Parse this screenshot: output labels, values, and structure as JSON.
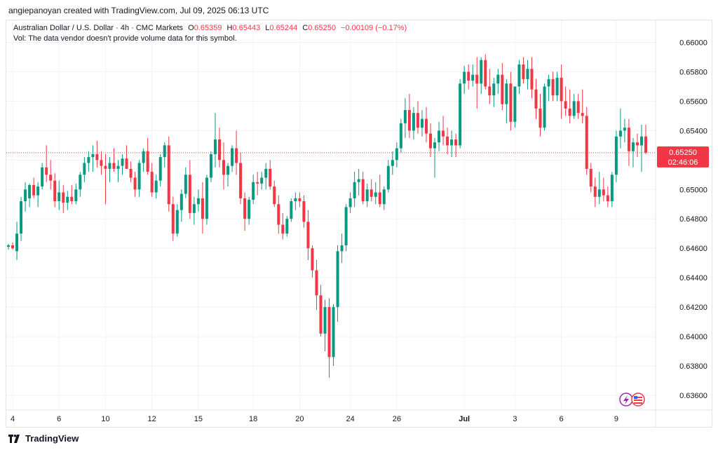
{
  "header": {
    "created_by": "angiepanoyan created with TradingView.com, Jul 09, 2025 06:13 UTC"
  },
  "legend": {
    "symbol": "Australian Dollar / U.S. Dollar · 4h · CMC Markets",
    "o_label": "O",
    "o": "0.65359",
    "h_label": "H",
    "h": "0.65443",
    "l_label": "L",
    "l": "0.65244",
    "c_label": "C",
    "c": "0.65250",
    "change": "−0.00109 (−0.17%)",
    "vol_note": "Vol: The data vendor doesn't provide volume data for this symbol."
  },
  "price_label": {
    "price": "0.65250",
    "countdown": "02:46:06"
  },
  "footer": {
    "brand": "TradingView"
  },
  "colors": {
    "up": "#089981",
    "down": "#f23645",
    "grid": "#f0f3fa",
    "text": "#131722",
    "countdown_bg": "#f23645"
  },
  "icons": [
    "lightning-icon",
    "us-flag-icon"
  ],
  "chart_data": {
    "type": "candlestick",
    "ylim": [
      0.635,
      0.6615
    ],
    "y_ticks": [
      "0.66000",
      "0.65800",
      "0.65600",
      "0.65400",
      "0.65200",
      "0.65000",
      "0.64800",
      "0.64600",
      "0.64400",
      "0.64200",
      "0.64000",
      "0.63800",
      "0.63600"
    ],
    "x_ticks": [
      {
        "label": "4",
        "index": 1
      },
      {
        "label": "6",
        "index": 12
      },
      {
        "label": "10",
        "index": 23
      },
      {
        "label": "12",
        "index": 34
      },
      {
        "label": "15",
        "index": 45
      },
      {
        "label": "18",
        "index": 58
      },
      {
        "label": "20",
        "index": 69
      },
      {
        "label": "24",
        "index": 81
      },
      {
        "label": "26",
        "index": 92
      },
      {
        "label": "Jul",
        "index": 108,
        "bold": true
      },
      {
        "label": "3",
        "index": 120
      },
      {
        "label": "6",
        "index": 131
      },
      {
        "label": "9",
        "index": 144
      }
    ],
    "last_price": 0.6525,
    "candles_ohlc": [
      [
        0.6461,
        0.6463,
        0.6459,
        0.6462
      ],
      [
        0.6462,
        0.6464,
        0.6459,
        0.646
      ],
      [
        0.6458,
        0.6478,
        0.6452,
        0.647
      ],
      [
        0.647,
        0.6495,
        0.6465,
        0.6492
      ],
      [
        0.6492,
        0.6505,
        0.6485,
        0.65
      ],
      [
        0.6494,
        0.6504,
        0.6488,
        0.6503
      ],
      [
        0.6503,
        0.6508,
        0.6494,
        0.6496
      ],
      [
        0.6496,
        0.6505,
        0.6488,
        0.6502
      ],
      [
        0.6502,
        0.6518,
        0.65,
        0.6515
      ],
      [
        0.6515,
        0.653,
        0.6505,
        0.651
      ],
      [
        0.651,
        0.652,
        0.65,
        0.6506
      ],
      [
        0.6506,
        0.6511,
        0.6488,
        0.6492
      ],
      [
        0.6492,
        0.6506,
        0.6486,
        0.6498
      ],
      [
        0.6498,
        0.6503,
        0.6484,
        0.6491
      ],
      [
        0.6491,
        0.6499,
        0.6486,
        0.6495
      ],
      [
        0.6495,
        0.6503,
        0.649,
        0.6492
      ],
      [
        0.6492,
        0.6504,
        0.649,
        0.65
      ],
      [
        0.65,
        0.6512,
        0.6495,
        0.651
      ],
      [
        0.651,
        0.6522,
        0.6505,
        0.6518
      ],
      [
        0.6518,
        0.6526,
        0.6512,
        0.6522
      ],
      [
        0.6522,
        0.653,
        0.6512,
        0.6524
      ],
      [
        0.6524,
        0.6533,
        0.6515,
        0.652
      ],
      [
        0.652,
        0.6526,
        0.651,
        0.6516
      ],
      [
        0.6516,
        0.6524,
        0.649,
        0.6514
      ],
      [
        0.6514,
        0.6522,
        0.6505,
        0.6518
      ],
      [
        0.6518,
        0.6528,
        0.6512,
        0.6514
      ],
      [
        0.6514,
        0.652,
        0.6505,
        0.6516
      ],
      [
        0.6516,
        0.6524,
        0.651,
        0.6521
      ],
      [
        0.6521,
        0.653,
        0.6515,
        0.6514
      ],
      [
        0.6514,
        0.6519,
        0.6505,
        0.6508
      ],
      [
        0.6508,
        0.6512,
        0.6495,
        0.65
      ],
      [
        0.65,
        0.652,
        0.6495,
        0.6518
      ],
      [
        0.6518,
        0.6528,
        0.6512,
        0.6526
      ],
      [
        0.6526,
        0.6535,
        0.651,
        0.6512
      ],
      [
        0.6512,
        0.6518,
        0.6495,
        0.6498
      ],
      [
        0.6498,
        0.651,
        0.6494,
        0.6506
      ],
      [
        0.6506,
        0.6524,
        0.6502,
        0.6522
      ],
      [
        0.6522,
        0.6532,
        0.6515,
        0.653
      ],
      [
        0.653,
        0.6536,
        0.6485,
        0.649
      ],
      [
        0.649,
        0.6495,
        0.6465,
        0.647
      ],
      [
        0.647,
        0.649,
        0.6468,
        0.6486
      ],
      [
        0.6486,
        0.65,
        0.6478,
        0.6497
      ],
      [
        0.6497,
        0.6515,
        0.6494,
        0.651
      ],
      [
        0.651,
        0.652,
        0.648,
        0.6484
      ],
      [
        0.6484,
        0.6495,
        0.6476,
        0.649
      ],
      [
        0.649,
        0.65,
        0.6485,
        0.6494
      ],
      [
        0.6494,
        0.6505,
        0.647,
        0.648
      ],
      [
        0.648,
        0.651,
        0.6476,
        0.6508
      ],
      [
        0.6508,
        0.6526,
        0.6505,
        0.6524
      ],
      [
        0.6524,
        0.6552,
        0.6515,
        0.6534
      ],
      [
        0.6534,
        0.6542,
        0.6515,
        0.652
      ],
      [
        0.652,
        0.6532,
        0.65,
        0.651
      ],
      [
        0.651,
        0.6518,
        0.6502,
        0.6516
      ],
      [
        0.6516,
        0.653,
        0.6512,
        0.6528
      ],
      [
        0.6528,
        0.654,
        0.651,
        0.6518
      ],
      [
        0.6518,
        0.6525,
        0.649,
        0.6494
      ],
      [
        0.6494,
        0.6498,
        0.6472,
        0.648
      ],
      [
        0.648,
        0.6495,
        0.6476,
        0.6493
      ],
      [
        0.6493,
        0.651,
        0.649,
        0.6505
      ],
      [
        0.6505,
        0.6512,
        0.6496,
        0.6504
      ],
      [
        0.6504,
        0.6512,
        0.65,
        0.6508
      ],
      [
        0.6508,
        0.6518,
        0.65,
        0.6514
      ],
      [
        0.6514,
        0.652,
        0.65,
        0.6502
      ],
      [
        0.6502,
        0.6506,
        0.6488,
        0.649
      ],
      [
        0.649,
        0.6496,
        0.647,
        0.6476
      ],
      [
        0.6476,
        0.6484,
        0.6466,
        0.647
      ],
      [
        0.647,
        0.6482,
        0.6468,
        0.648
      ],
      [
        0.648,
        0.6494,
        0.6478,
        0.6492
      ],
      [
        0.6492,
        0.6498,
        0.6486,
        0.6494
      ],
      [
        0.6494,
        0.6498,
        0.6488,
        0.6492
      ],
      [
        0.6492,
        0.6496,
        0.6474,
        0.6478
      ],
      [
        0.6478,
        0.6486,
        0.6452,
        0.646
      ],
      [
        0.646,
        0.6462,
        0.644,
        0.6445
      ],
      [
        0.6445,
        0.6452,
        0.6418,
        0.6428
      ],
      [
        0.6428,
        0.6435,
        0.64,
        0.6402
      ],
      [
        0.6402,
        0.6425,
        0.639,
        0.642
      ],
      [
        0.642,
        0.6426,
        0.6372,
        0.6386
      ],
      [
        0.6386,
        0.6422,
        0.638,
        0.642
      ],
      [
        0.642,
        0.6462,
        0.641,
        0.6458
      ],
      [
        0.6458,
        0.647,
        0.645,
        0.6462
      ],
      [
        0.6462,
        0.649,
        0.6458,
        0.6488
      ],
      [
        0.6488,
        0.6498,
        0.6484,
        0.6494
      ],
      [
        0.6494,
        0.6512,
        0.6488,
        0.6505
      ],
      [
        0.6505,
        0.6514,
        0.6496,
        0.6507
      ],
      [
        0.6507,
        0.6512,
        0.649,
        0.6492
      ],
      [
        0.6492,
        0.6504,
        0.6488,
        0.65
      ],
      [
        0.65,
        0.6507,
        0.6492,
        0.6495
      ],
      [
        0.6495,
        0.6505,
        0.649,
        0.6498
      ],
      [
        0.6498,
        0.651,
        0.6488,
        0.649
      ],
      [
        0.649,
        0.6502,
        0.6486,
        0.65
      ],
      [
        0.65,
        0.652,
        0.6498,
        0.6516
      ],
      [
        0.6516,
        0.6526,
        0.651,
        0.652
      ],
      [
        0.652,
        0.6532,
        0.6515,
        0.6528
      ],
      [
        0.6528,
        0.6548,
        0.6525,
        0.6545
      ],
      [
        0.6545,
        0.6562,
        0.6535,
        0.6554
      ],
      [
        0.6554,
        0.6565,
        0.6535,
        0.654
      ],
      [
        0.654,
        0.6556,
        0.6534,
        0.6552
      ],
      [
        0.6552,
        0.656,
        0.6538,
        0.6542
      ],
      [
        0.6542,
        0.6554,
        0.6536,
        0.6548
      ],
      [
        0.6548,
        0.6556,
        0.6532,
        0.6538
      ],
      [
        0.6538,
        0.6545,
        0.6522,
        0.6528
      ],
      [
        0.6528,
        0.6535,
        0.6508,
        0.6532
      ],
      [
        0.6532,
        0.6546,
        0.6526,
        0.654
      ],
      [
        0.654,
        0.655,
        0.653,
        0.6536
      ],
      [
        0.6536,
        0.6542,
        0.6524,
        0.653
      ],
      [
        0.653,
        0.654,
        0.6522,
        0.6534
      ],
      [
        0.6534,
        0.6538,
        0.6522,
        0.653
      ],
      [
        0.653,
        0.6575,
        0.6528,
        0.6572
      ],
      [
        0.6572,
        0.6584,
        0.6565,
        0.658
      ],
      [
        0.658,
        0.6585,
        0.6568,
        0.6574
      ],
      [
        0.6574,
        0.6585,
        0.657,
        0.6578
      ],
      [
        0.6578,
        0.659,
        0.6555,
        0.6572
      ],
      [
        0.6572,
        0.659,
        0.6565,
        0.6588
      ],
      [
        0.6588,
        0.6592,
        0.6568,
        0.657
      ],
      [
        0.657,
        0.6582,
        0.6558,
        0.6564
      ],
      [
        0.6564,
        0.6576,
        0.6556,
        0.6572
      ],
      [
        0.6572,
        0.6582,
        0.6565,
        0.6578
      ],
      [
        0.6578,
        0.6586,
        0.6554,
        0.6558
      ],
      [
        0.6558,
        0.6575,
        0.6545,
        0.6572
      ],
      [
        0.6572,
        0.658,
        0.654,
        0.6546
      ],
      [
        0.6546,
        0.6565,
        0.6542,
        0.657
      ],
      [
        0.657,
        0.6588,
        0.6565,
        0.6585
      ],
      [
        0.6585,
        0.659,
        0.6572,
        0.6575
      ],
      [
        0.6575,
        0.6588,
        0.6568,
        0.6582
      ],
      [
        0.6582,
        0.659,
        0.6562,
        0.6568
      ],
      [
        0.6568,
        0.6575,
        0.6548,
        0.6555
      ],
      [
        0.6555,
        0.6565,
        0.6536,
        0.6542
      ],
      [
        0.6542,
        0.6572,
        0.654,
        0.657
      ],
      [
        0.657,
        0.6578,
        0.656,
        0.6575
      ],
      [
        0.6575,
        0.658,
        0.656,
        0.6564
      ],
      [
        0.6564,
        0.658,
        0.656,
        0.6576
      ],
      [
        0.6576,
        0.6585,
        0.6548,
        0.656
      ],
      [
        0.656,
        0.657,
        0.655,
        0.6555
      ],
      [
        0.6555,
        0.6568,
        0.6545,
        0.655
      ],
      [
        0.655,
        0.6565,
        0.6548,
        0.656
      ],
      [
        0.656,
        0.6565,
        0.6548,
        0.6552
      ],
      [
        0.6552,
        0.6568,
        0.6545,
        0.655
      ],
      [
        0.655,
        0.6556,
        0.651,
        0.6514
      ],
      [
        0.6514,
        0.6518,
        0.6498,
        0.6502
      ],
      [
        0.6502,
        0.6508,
        0.6488,
        0.6495
      ],
      [
        0.6495,
        0.6512,
        0.649,
        0.65
      ],
      [
        0.65,
        0.6508,
        0.6492,
        0.6496
      ],
      [
        0.6496,
        0.6502,
        0.6488,
        0.6492
      ],
      [
        0.6492,
        0.6512,
        0.6488,
        0.651
      ],
      [
        0.651,
        0.654,
        0.6505,
        0.6536
      ],
      [
        0.6536,
        0.6555,
        0.6528,
        0.654
      ],
      [
        0.654,
        0.6548,
        0.6532,
        0.6542
      ],
      [
        0.6542,
        0.6548,
        0.6516,
        0.6526
      ],
      [
        0.6526,
        0.6535,
        0.6515,
        0.6532
      ],
      [
        0.6532,
        0.6538,
        0.6522,
        0.653
      ],
      [
        0.653,
        0.6544,
        0.6512,
        0.6536
      ],
      [
        0.6536,
        0.6544,
        0.6524,
        0.6525
      ]
    ]
  }
}
